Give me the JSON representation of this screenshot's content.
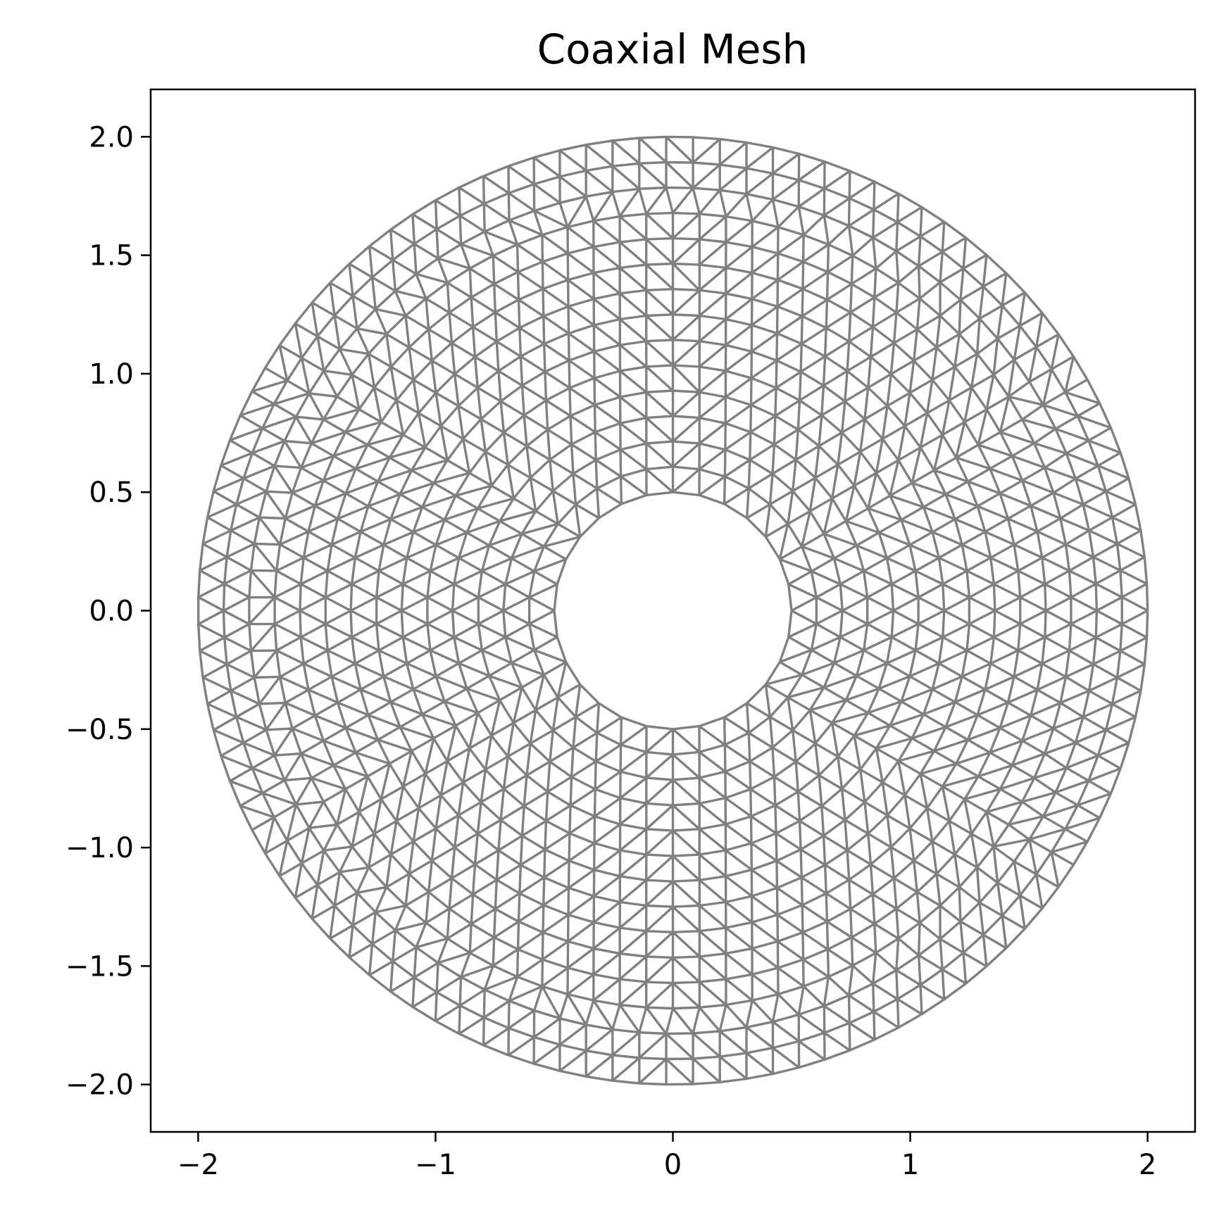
{
  "chart_data": {
    "type": "scatter",
    "subtype": "triangular-mesh",
    "title": "Coaxial Mesh",
    "xlabel": "",
    "ylabel": "",
    "xlim": [
      -2.2,
      2.2
    ],
    "ylim": [
      -2.2,
      2.2
    ],
    "xticks": [
      -2,
      -1,
      0,
      1,
      2
    ],
    "xtick_labels": [
      "−2",
      "−1",
      "0",
      "1",
      "2"
    ],
    "yticks": [
      -2.0,
      -1.5,
      -1.0,
      -0.5,
      0.0,
      0.5,
      1.0,
      1.5,
      2.0
    ],
    "ytick_labels": [
      "−2.0",
      "−1.5",
      "−1.0",
      "−0.5",
      "0.0",
      "0.5",
      "1.0",
      "1.5",
      "2.0"
    ],
    "inner_radius": 0.5,
    "outer_radius": 2.0,
    "grid": false,
    "legend": "none",
    "mesh_color": "#808080",
    "axis_color": "#000000"
  }
}
